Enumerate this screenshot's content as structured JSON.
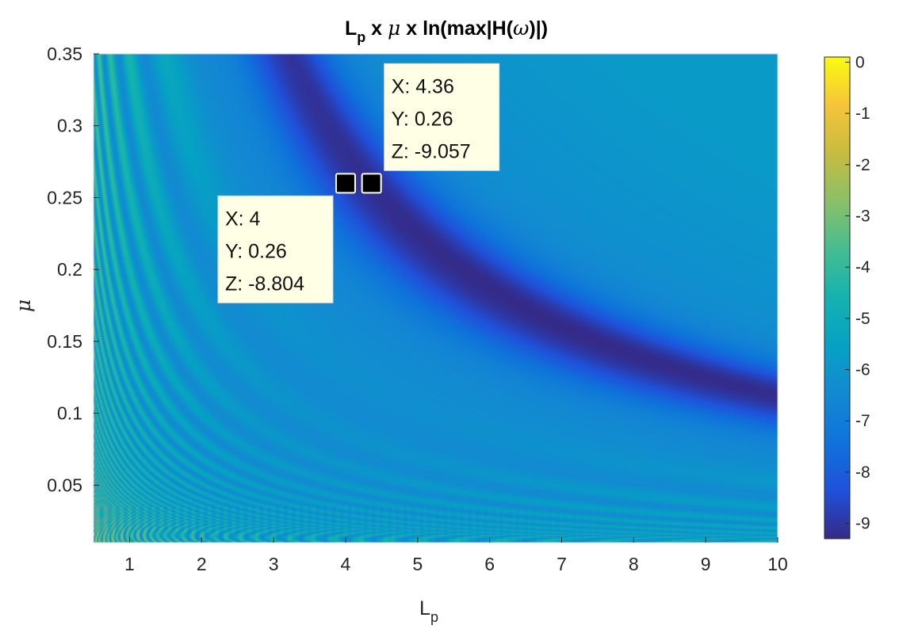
{
  "chart_data": {
    "type": "heatmap",
    "title": {
      "l_main": "L",
      "l_sub": "p",
      "x_sep_1": " x ",
      "mu": "μ",
      "x_sep_2": " x ",
      "fn": "ln(max|H(",
      "omega": "ω",
      "fn_end": ")|)"
    },
    "xlabel": {
      "main": "L",
      "sub": "p"
    },
    "ylabel": "μ",
    "xlim": [
      0.5,
      10
    ],
    "ylim": [
      0.01,
      0.35
    ],
    "clim": [
      -9.3,
      0.1
    ],
    "colormap": "parula",
    "x_ticks": [
      1,
      2,
      3,
      4,
      5,
      6,
      7,
      8,
      9,
      10
    ],
    "x_tick_labels": [
      "1",
      "2",
      "3",
      "4",
      "5",
      "6",
      "7",
      "8",
      "9",
      "10"
    ],
    "y_ticks": [
      0.05,
      0.1,
      0.15,
      0.2,
      0.25,
      0.3,
      0.35
    ],
    "y_tick_labels": [
      "0.05",
      "0.1",
      "0.15",
      "0.2",
      "0.25",
      "0.3",
      "0.35"
    ],
    "colorbar_ticks": [
      0,
      -1,
      -2,
      -3,
      -4,
      -5,
      -6,
      -7,
      -8,
      -9
    ],
    "colorbar_tick_labels": [
      "0",
      "-1",
      "-2",
      "-3",
      "-4",
      "-5",
      "-6",
      "-7",
      "-8",
      "-9"
    ],
    "valley_curve": {
      "description_formula": "mu * Lp ≈ 1.13",
      "min_value": -9.3
    },
    "datatips": [
      {
        "x": 4.36,
        "y": 0.26,
        "z": -9.057,
        "lines": [
          "X: 4.36",
          "Y: 0.26",
          "Z: -9.057"
        ],
        "placement": "top-right"
      },
      {
        "x": 4,
        "y": 0.26,
        "z": -8.804,
        "lines": [
          "X: 4",
          "Y: 0.26",
          "Z: -8.804"
        ],
        "placement": "bottom-left"
      }
    ]
  }
}
